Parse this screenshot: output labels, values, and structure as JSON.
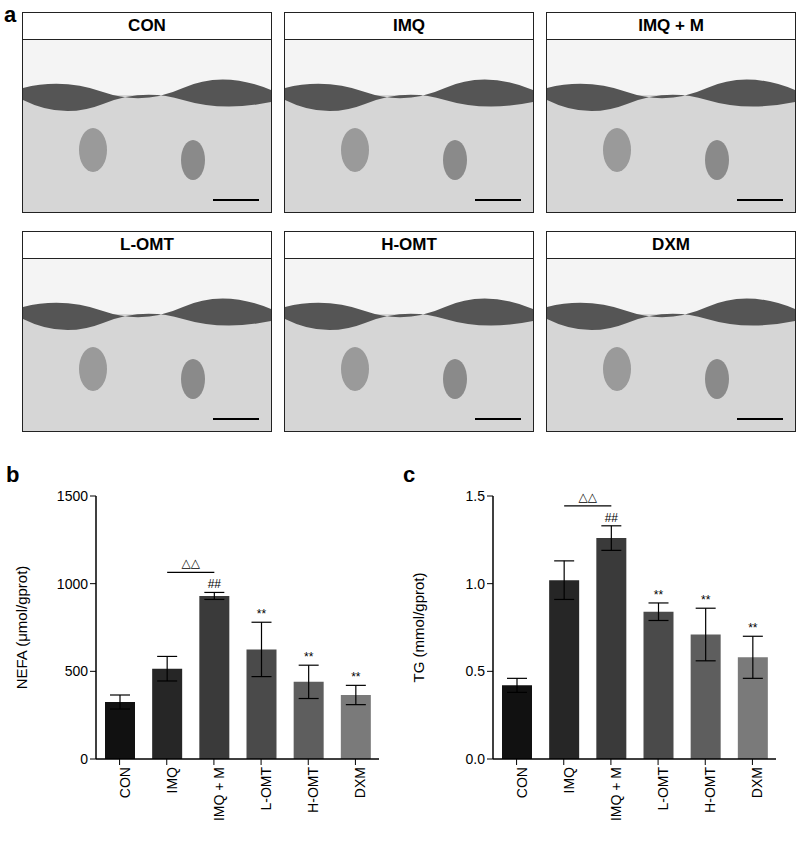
{
  "panel_a": {
    "label": "a",
    "images": [
      "CON",
      "IMQ",
      "IMQ + M",
      "L-OMT",
      "H-OMT",
      "DXM"
    ]
  },
  "chart_data": [
    {
      "type": "bar",
      "label": "b",
      "y_label": "NEFA (μmol/gprot)",
      "categories": [
        "CON",
        "IMQ",
        "IMQ + M",
        "L-OMT",
        "H-OMT",
        "DXM"
      ],
      "values": [
        325,
        515,
        930,
        625,
        440,
        365
      ],
      "errors": [
        40,
        70,
        20,
        155,
        95,
        55
      ],
      "colors": [
        "#111111",
        "#262626",
        "#3a3a3a",
        "#4a4a4a",
        "#5e5e5e",
        "#7a7a7a"
      ],
      "ylim": [
        0,
        1500
      ],
      "yticks": [
        0,
        500,
        1000,
        1500
      ],
      "markers": [
        {
          "category": "IMQ + M",
          "text": "##"
        },
        {
          "category": "L-OMT",
          "text": "**"
        },
        {
          "category": "H-OMT",
          "text": "**"
        },
        {
          "category": "DXM",
          "text": "**"
        }
      ],
      "brackets": [
        {
          "from": "IMQ",
          "to": "IMQ + M",
          "text": "△△"
        }
      ]
    },
    {
      "type": "bar",
      "label": "c",
      "y_label": "TG (mmol/gprot)",
      "categories": [
        "CON",
        "IMQ",
        "IMQ + M",
        "L-OMT",
        "H-OMT",
        "DXM"
      ],
      "values": [
        0.42,
        1.02,
        1.26,
        0.84,
        0.71,
        0.58
      ],
      "errors": [
        0.04,
        0.11,
        0.07,
        0.05,
        0.15,
        0.12
      ],
      "colors": [
        "#111111",
        "#262626",
        "#3a3a3a",
        "#4a4a4a",
        "#5e5e5e",
        "#7a7a7a"
      ],
      "ylim": [
        0,
        1.5
      ],
      "yticks": [
        {
          "value": 0,
          "label": "0.0"
        },
        0.5,
        {
          "value": 1,
          "label": "1.0"
        },
        1.5
      ],
      "markers": [
        {
          "category": "IMQ + M",
          "text": "##"
        },
        {
          "category": "L-OMT",
          "text": "**"
        },
        {
          "category": "H-OMT",
          "text": "**"
        },
        {
          "category": "DXM",
          "text": "**"
        }
      ],
      "brackets": [
        {
          "from": "IMQ",
          "to": "IMQ + M",
          "text": "△△"
        }
      ]
    }
  ]
}
